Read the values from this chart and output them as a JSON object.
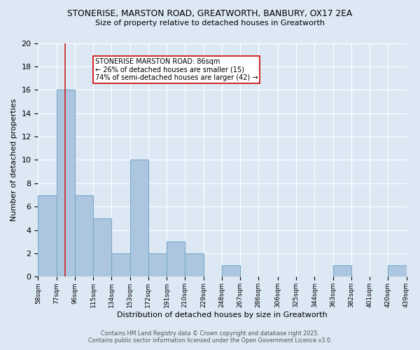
{
  "title_line1": "STONERISE, MARSTON ROAD, GREATWORTH, BANBURY, OX17 2EA",
  "title_line2": "Size of property relative to detached houses in Greatworth",
  "xlabel": "Distribution of detached houses by size in Greatworth",
  "ylabel": "Number of detached properties",
  "bins": [
    58,
    77,
    96,
    115,
    134,
    153,
    172,
    191,
    210,
    229,
    248,
    267,
    286,
    306,
    325,
    344,
    363,
    382,
    401,
    420,
    439
  ],
  "counts": [
    7,
    16,
    7,
    5,
    2,
    10,
    2,
    3,
    2,
    0,
    1,
    0,
    0,
    0,
    0,
    0,
    1,
    0,
    0,
    1,
    0
  ],
  "bar_color": "#adc6e0",
  "bar_edge_color": "#7aaac8",
  "bg_color": "#dde8f5",
  "grid_color": "#ffffff",
  "red_line_x": 86,
  "annotation_text": "STONERISE MARSTON ROAD: 86sqm\n← 26% of detached houses are smaller (15)\n74% of semi-detached houses are larger (42) →",
  "annotation_box_color": "#ffffff",
  "annotation_box_edge": "#cc0000",
  "ylim": [
    0,
    20
  ],
  "yticks": [
    0,
    2,
    4,
    6,
    8,
    10,
    12,
    14,
    16,
    18,
    20
  ],
  "footer_line1": "Contains HM Land Registry data © Crown copyright and database right 2025.",
  "footer_line2": "Contains public sector information licensed under the Open Government Licence v3.0."
}
